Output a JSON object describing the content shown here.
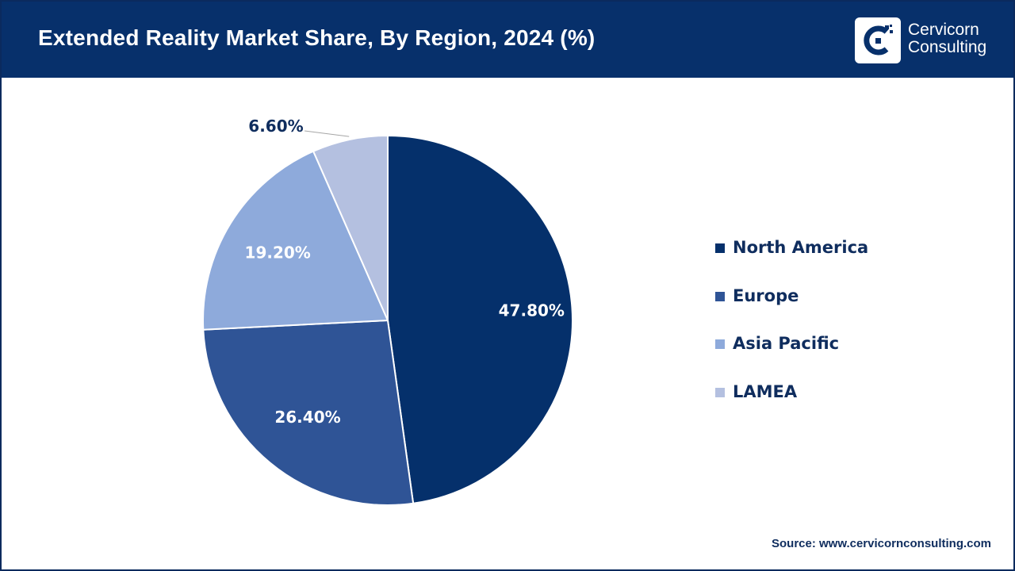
{
  "header": {
    "title": "Extended Reality Market Share, By Region, 2024 (%)",
    "background_color": "#07306b"
  },
  "logo": {
    "line1": "Cervicorn",
    "line2": "Consulting"
  },
  "chart_data": {
    "type": "pie",
    "title": "Extended Reality Market Share, By Region, 2024 (%)",
    "categories": [
      "North America",
      "Europe",
      "Asia Pacific",
      "LAMEA"
    ],
    "values": [
      47.8,
      26.4,
      19.2,
      6.6
    ],
    "labels": [
      "47.80%",
      "26.40%",
      "19.20%",
      "6.60%"
    ],
    "colors": [
      "#05306b",
      "#2f5496",
      "#8eaadb",
      "#b4c0e0"
    ],
    "label_colors": [
      "#ffffff",
      "#ffffff",
      "#ffffff",
      "#0f2d5e"
    ],
    "start_angle_deg": 0,
    "direction": "clockwise",
    "legend_position": "right"
  },
  "source": "Source: www.cervicornconsulting.com"
}
